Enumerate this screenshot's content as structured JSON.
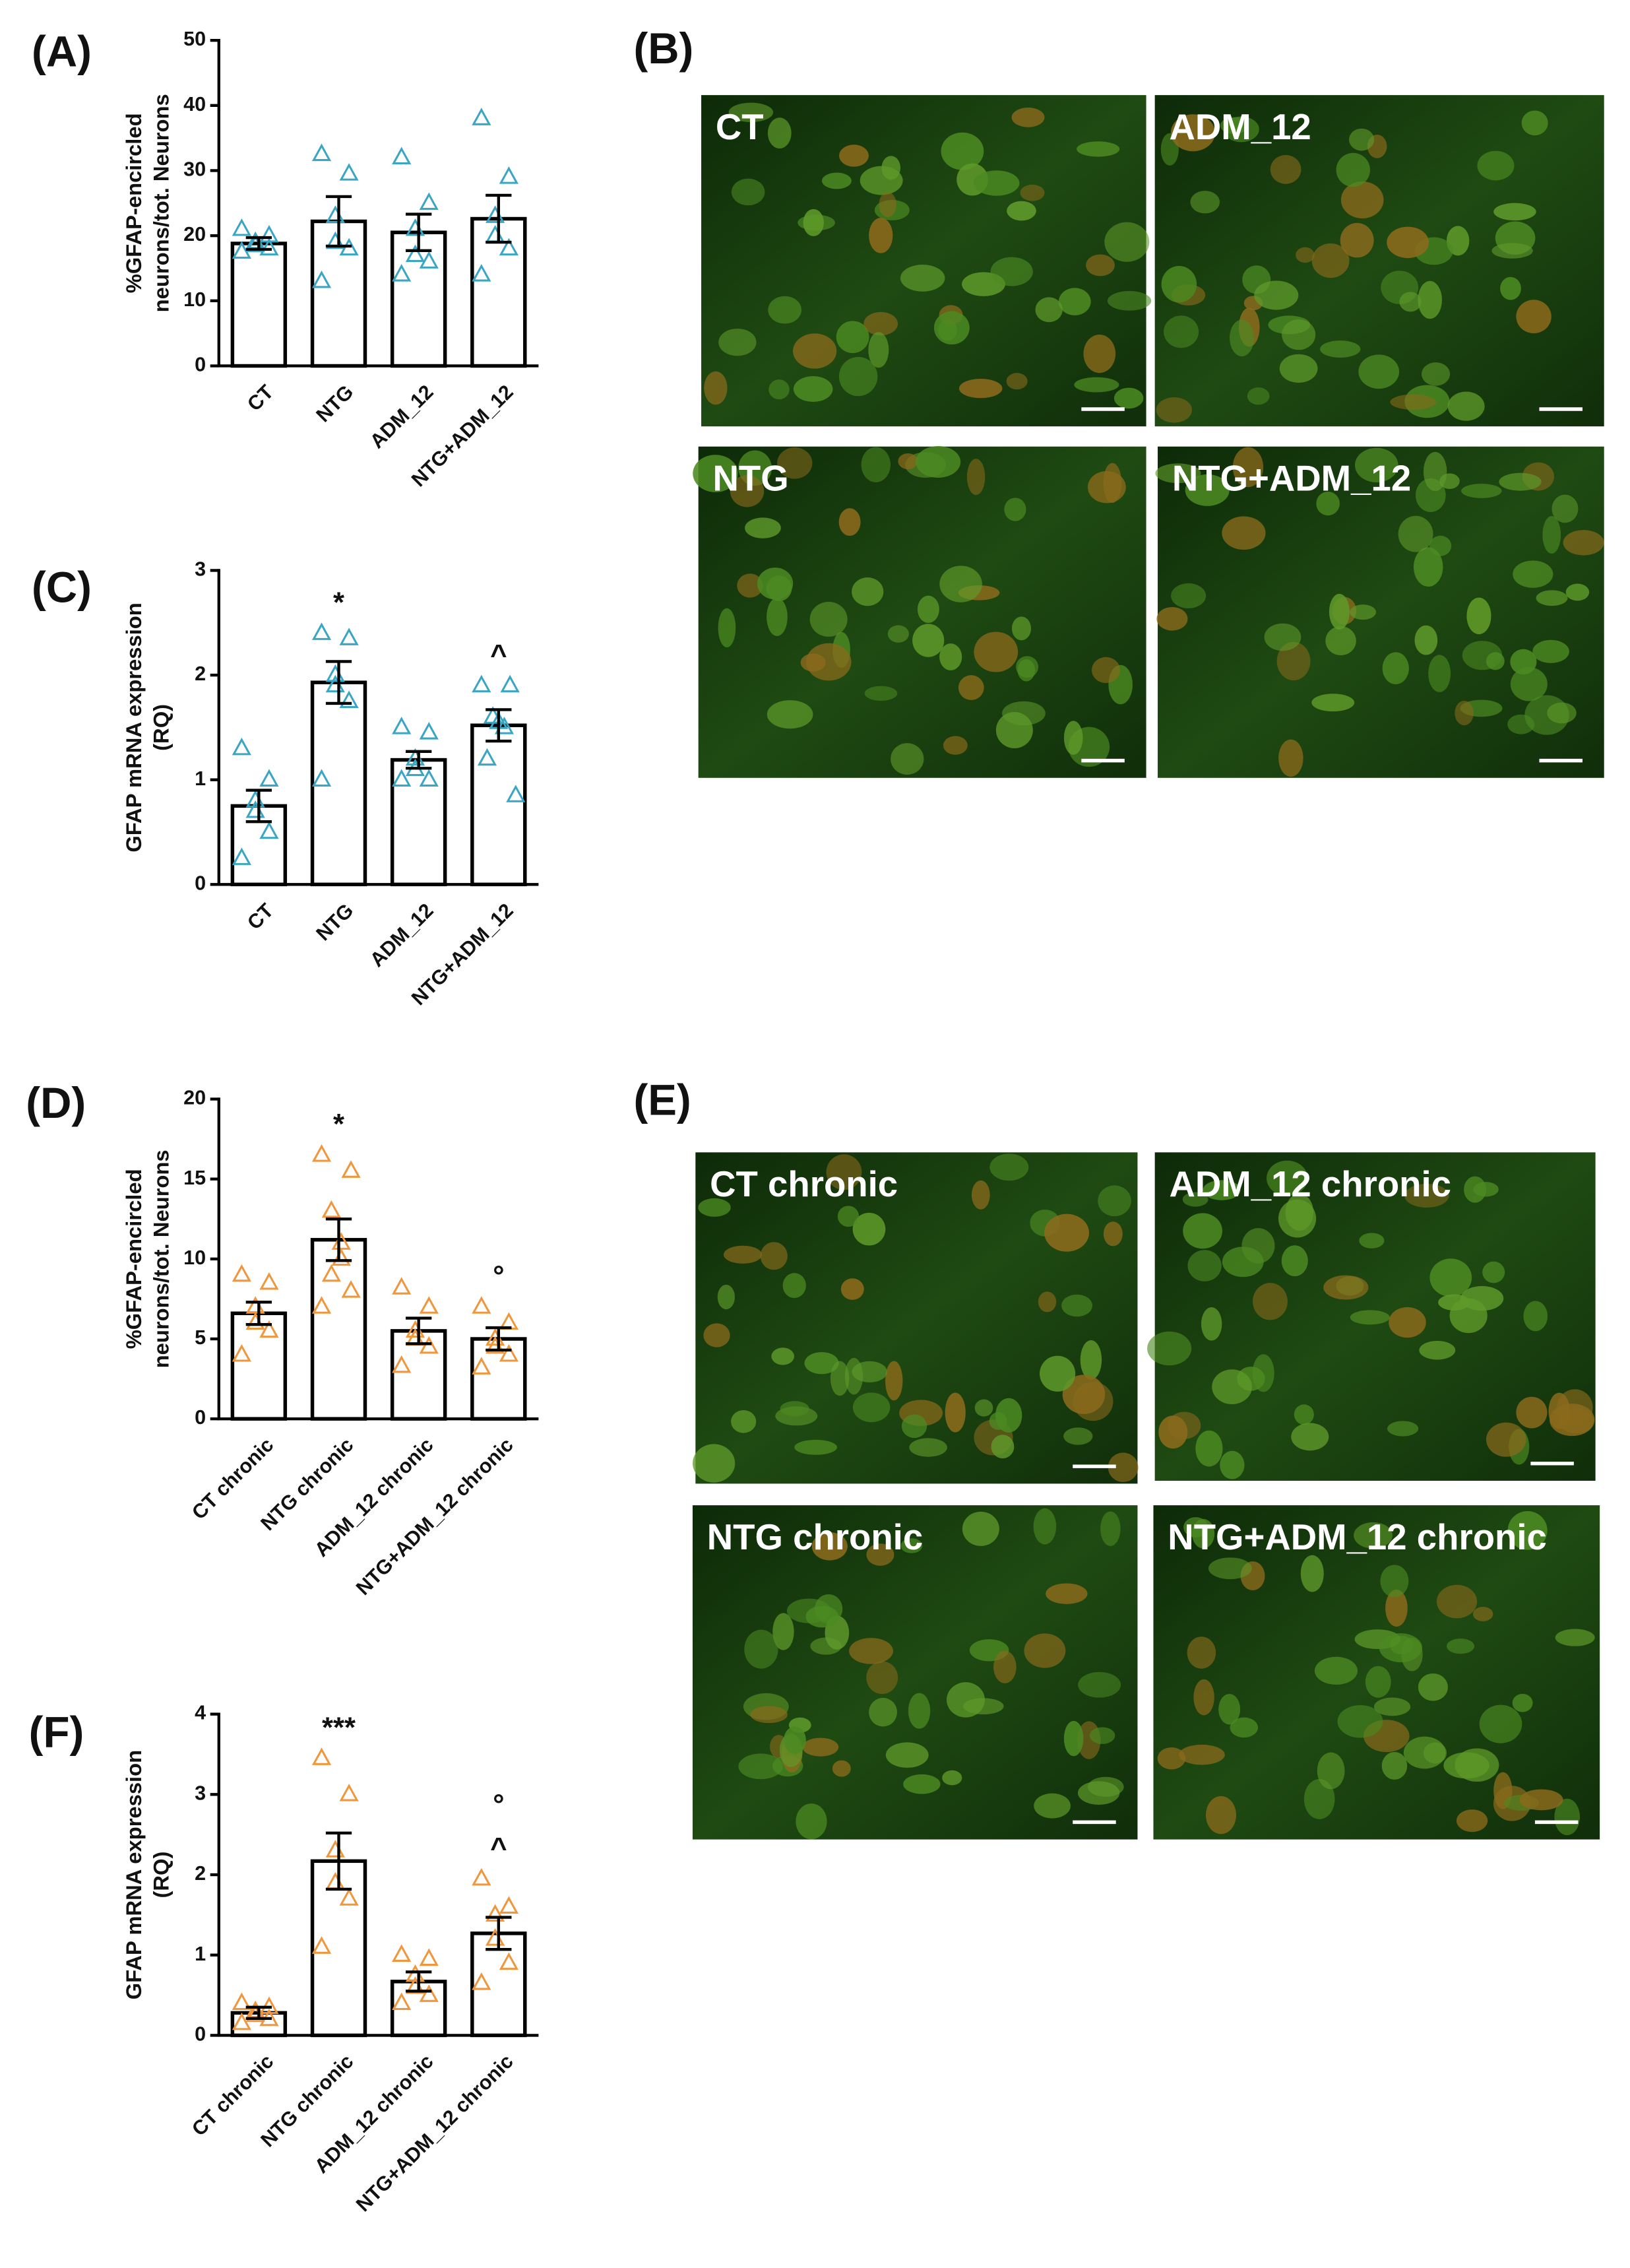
{
  "chart_data": [
    {
      "type": "bar",
      "panel_label": "(A)",
      "ylabel": [
        "%GFAP-encircled",
        "neurons/tot. Neurons"
      ],
      "categories": [
        "CT",
        "NTG",
        "ADM_12",
        "NTG+ADM_12"
      ],
      "values": [
        18.8,
        22.2,
        20.5,
        22.6
      ],
      "errors": [
        0.9,
        3.8,
        2.8,
        3.6
      ],
      "points": [
        [
          21,
          20,
          19,
          18.5,
          18,
          17.5
        ],
        [
          32.5,
          29.5,
          23,
          19,
          18,
          13
        ],
        [
          32,
          25,
          21,
          17,
          16,
          14
        ],
        [
          38,
          29,
          23,
          20,
          18,
          14
        ]
      ],
      "point_color": "#3aa6c4",
      "annotations": [
        null,
        null,
        null,
        null
      ],
      "ylim": [
        0,
        50
      ],
      "yticks": [
        0,
        10,
        20,
        30,
        40,
        50
      ]
    },
    {
      "type": "bar",
      "panel_label": "(C)",
      "ylabel": [
        "GFAP mRNA expression",
        "(RQ)"
      ],
      "categories": [
        "CT",
        "NTG",
        "ADM_12",
        "NTG+ADM_12"
      ],
      "values": [
        0.75,
        1.93,
        1.19,
        1.52
      ],
      "errors": [
        0.15,
        0.2,
        0.08,
        0.15
      ],
      "points": [
        [
          1.3,
          1.0,
          0.8,
          0.7,
          0.5,
          0.25
        ],
        [
          2.4,
          2.35,
          2.0,
          1.9,
          1.75,
          1.0
        ],
        [
          1.5,
          1.45,
          1.2,
          1.1,
          1.0,
          1.0
        ],
        [
          1.9,
          1.9,
          1.6,
          1.55,
          1.5,
          1.2,
          0.85
        ]
      ],
      "point_color": "#3aa6c4",
      "annotations": [
        null,
        [
          "*"
        ],
        null,
        [
          "^"
        ]
      ],
      "ylim": [
        0,
        3
      ],
      "yticks": [
        0,
        1,
        2,
        3
      ]
    },
    {
      "type": "bar",
      "panel_label": "(D)",
      "ylabel": [
        "%GFAP-encircled",
        "neurons/tot. Neurons"
      ],
      "categories": [
        "CT chronic",
        "NTG chronic",
        "ADM_12 chronic",
        "NTG+ADM_12 chronic"
      ],
      "values": [
        6.6,
        11.2,
        5.5,
        5.0
      ],
      "errors": [
        0.7,
        1.3,
        0.8,
        0.7
      ],
      "points": [
        [
          9,
          8.5,
          7,
          6,
          5.5,
          4
        ],
        [
          16.5,
          15.5,
          13,
          11,
          10,
          9,
          8,
          7
        ],
        [
          8.2,
          7,
          5.5,
          5,
          4.5,
          3.3
        ],
        [
          7,
          6,
          5,
          4.5,
          4,
          3.2
        ]
      ],
      "point_color": "#f0963c",
      "annotations": [
        null,
        [
          "*"
        ],
        null,
        [
          "°"
        ]
      ],
      "ylim": [
        0,
        20
      ],
      "yticks": [
        0,
        5,
        10,
        15,
        20
      ]
    },
    {
      "type": "bar",
      "panel_label": "(F)",
      "ylabel": [
        "GFAP mRNA expression",
        "(RQ)"
      ],
      "categories": [
        "CT chronic",
        "NTG chronic",
        "ADM_12 chronic",
        "NTG+ADM_12 chronic"
      ],
      "values": [
        0.28,
        2.17,
        0.67,
        1.27
      ],
      "errors": [
        0.07,
        0.35,
        0.12,
        0.2
      ],
      "points": [
        [
          0.4,
          0.35,
          0.3,
          0.25,
          0.2,
          0.15
        ],
        [
          3.45,
          3.0,
          2.3,
          1.9,
          1.7,
          1.1
        ],
        [
          1.0,
          0.95,
          0.75,
          0.6,
          0.5,
          0.4
        ],
        [
          1.95,
          1.6,
          1.5,
          1.2,
          0.9,
          0.65
        ]
      ],
      "point_color": "#f0963c",
      "annotations": [
        null,
        [
          "***"
        ],
        null,
        [
          "°",
          "^"
        ]
      ],
      "ylim": [
        0,
        4
      ],
      "yticks": [
        0,
        1,
        2,
        3,
        4
      ]
    }
  ],
  "micrographs": [
    {
      "panel_label": "(B)",
      "labels": [
        "CT",
        "ADM_12",
        "NTG",
        "NTG+ADM_12"
      ]
    },
    {
      "panel_label": "(E)",
      "labels": [
        "CT chronic",
        "ADM_12 chronic",
        "NTG chronic",
        "NTG+ADM_12 chronic"
      ]
    }
  ]
}
